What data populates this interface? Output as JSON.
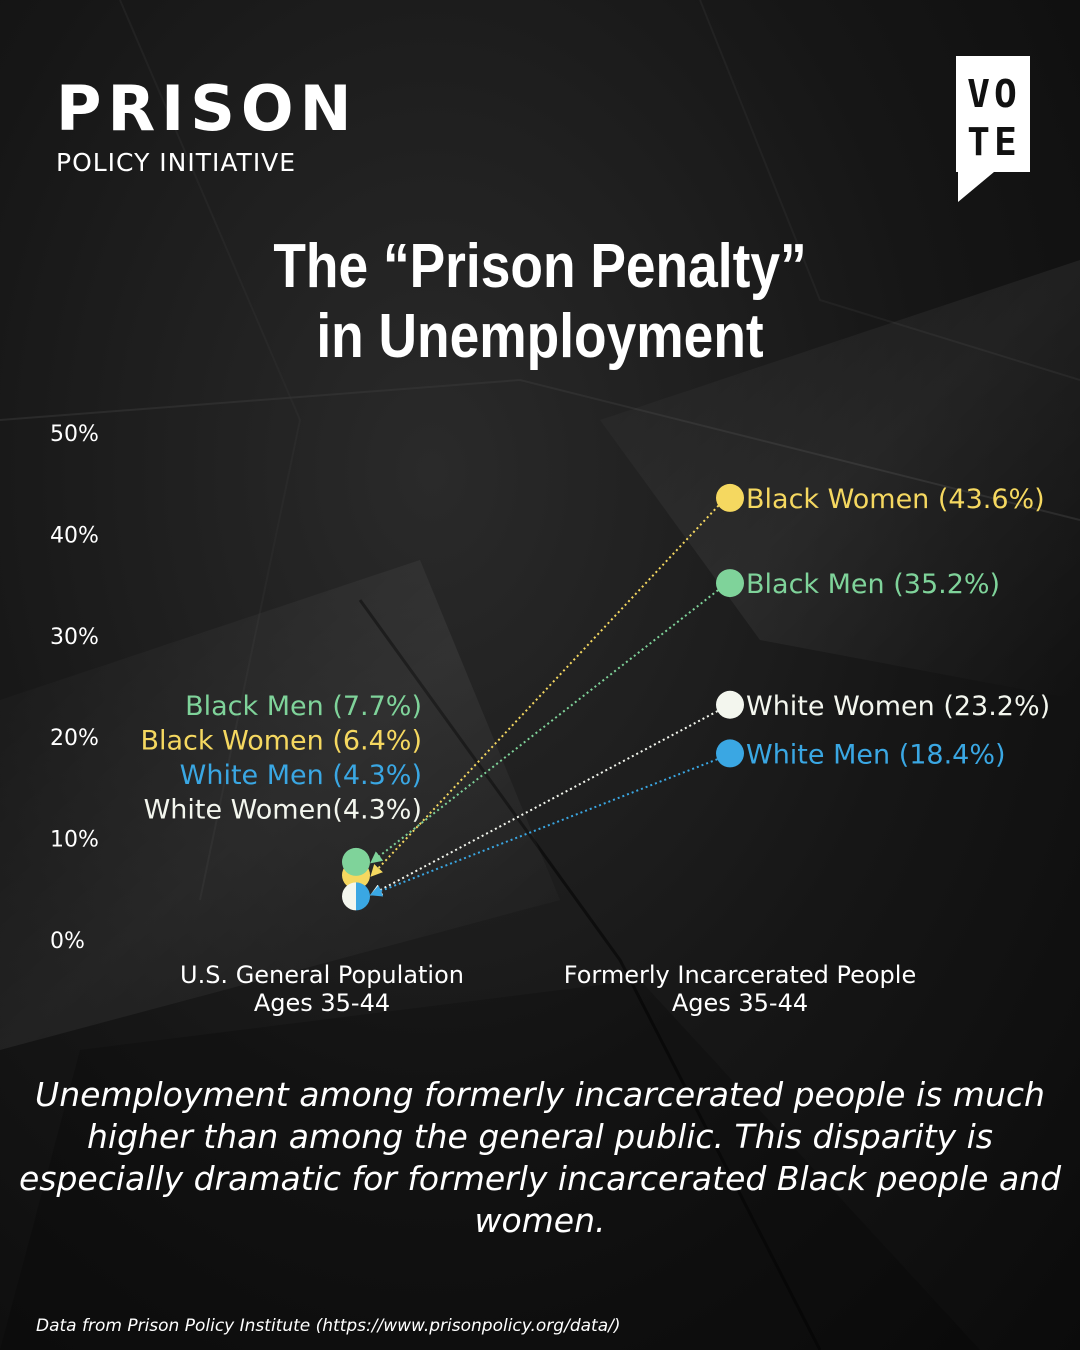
{
  "logo": {
    "line1": "PRISON",
    "line2": "POLICY INITIATIVE"
  },
  "badge": {
    "text": "VOTE"
  },
  "title": {
    "line1": "The “Prison Penalty”",
    "line2": "in Unemployment"
  },
  "caption": "Unemployment among formerly incarcerated people is much higher than among the general public. This disparity is especially dramatic for formerly incarcerated Black people and women.",
  "source": "Data from Prison Policy Institute (https://www.prisonpolicy.org/data/)",
  "colors": {
    "green": "#7fd39a",
    "yellow": "#f5d860",
    "blue": "#3aa7e3",
    "white": "#f3f6ee"
  },
  "chart_data": {
    "type": "scatter",
    "title": "The “Prison Penalty” in Unemployment",
    "ylim": [
      0,
      50
    ],
    "yticks": [
      "0%",
      "10%",
      "20%",
      "30%",
      "40%",
      "50%"
    ],
    "ytick_values": [
      0,
      10,
      20,
      30,
      40,
      50
    ],
    "categories": [
      "U.S. General Population\nAges 35-44",
      "Formerly Incarcerated People\nAges 35-44"
    ],
    "series": [
      {
        "name": "Black Women",
        "color": "#f5d860",
        "values": [
          6.4,
          43.6
        ],
        "labels": [
          "Black Women (6.4%)",
          "Black Women (43.6%)"
        ]
      },
      {
        "name": "Black Men",
        "color": "#7fd39a",
        "values": [
          7.7,
          35.2
        ],
        "labels": [
          "Black Men (7.7%)",
          "Black Men (35.2%)"
        ]
      },
      {
        "name": "White Women",
        "color": "#f3f6ee",
        "values": [
          4.3,
          23.2
        ],
        "labels": [
          "White Women(4.3%)",
          "White Women (23.2%)"
        ]
      },
      {
        "name": "White Men",
        "color": "#3aa7e3",
        "values": [
          4.3,
          18.4
        ],
        "labels": [
          "White Men (4.3%)",
          "White Men (18.4%)"
        ]
      }
    ]
  }
}
